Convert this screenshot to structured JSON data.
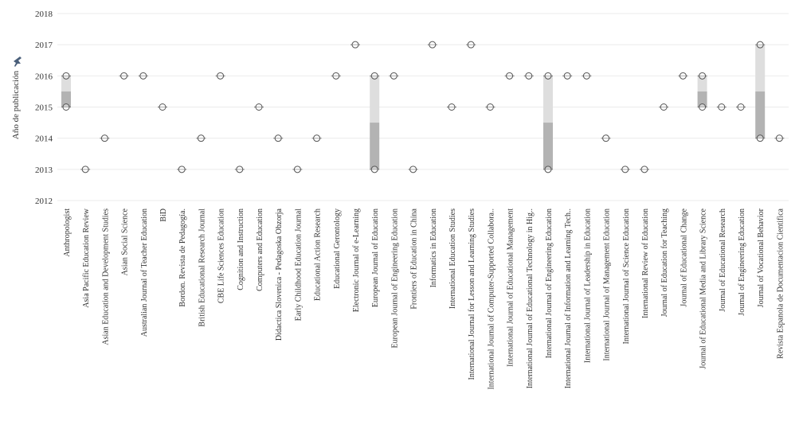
{
  "chart_data": {
    "type": "box",
    "ylabel": "Año de publicación",
    "ylabel_icon": "pin-icon",
    "ylim": [
      2012,
      2018
    ],
    "yticks": [
      2018,
      2017,
      2016,
      2015,
      2014,
      2013,
      2012
    ],
    "grid": true,
    "colors": {
      "marker_fill": "#ffffff",
      "marker_stroke": "#555555",
      "box_upper": "#dedede",
      "box_lower": "#b3b3b3",
      "grid": "#ebebeb"
    },
    "categories": [
      "Anthropologist",
      "Asia Pacific Education Review",
      "Asian Education and Development Studies",
      "Asian Social Science",
      "Australian Journal of Teacher Education",
      "BiD",
      "Bordon. Revista de Pedagogía.",
      "British Educational Research Journal",
      "CBE Life Sciences Education",
      "Cognition and Instruction",
      "Computers and Education",
      "Didactica Slovenica - Pedagoska Obzorja",
      "Early Childhood Education Journal",
      "Educational Action Research",
      "Educational Gerontology",
      "Electronic Journal of e-Learning",
      "European Journal of Education",
      "European Journal of Engineering Education",
      "Frontiers of Education in China",
      "Informatics in Education",
      "International Education Studies",
      "International Journal for Lesson and Learning Studies",
      "International Journal of Computer-Supported Collabora..",
      "International Journal of Educational Management",
      "International Journal of Educational Technology in Hig..",
      "International Journal of Engineering Education",
      "International Journal of Information and Learning Tech..",
      "International Journal of Leadership in Education",
      "International Journal of Management Education",
      "International Journal of Science Education",
      "International Review of Education",
      "Journal of Education for Teaching",
      "Journal of Educational Change",
      "Journal of Educational Media and Library Science",
      "Journal of Educational Research",
      "Journal of Engineering Education",
      "Journal of Vocational Behavior",
      "Revista Espanola de Documentacion Cientifica"
    ],
    "values": [
      [
        2015,
        2016
      ],
      [
        2013
      ],
      [
        2014
      ],
      [
        2016
      ],
      [
        2016
      ],
      [
        2015
      ],
      [
        2013
      ],
      [
        2014
      ],
      [
        2016
      ],
      [
        2013
      ],
      [
        2015
      ],
      [
        2014
      ],
      [
        2013
      ],
      [
        2014
      ],
      [
        2016
      ],
      [
        2017
      ],
      [
        2013,
        2016
      ],
      [
        2016
      ],
      [
        2013
      ],
      [
        2017
      ],
      [
        2015
      ],
      [
        2017
      ],
      [
        2015
      ],
      [
        2016
      ],
      [
        2016
      ],
      [
        2013,
        2016
      ],
      [
        2016
      ],
      [
        2016
      ],
      [
        2014
      ],
      [
        2013
      ],
      [
        2013
      ],
      [
        2015
      ],
      [
        2016
      ],
      [
        2015,
        2016
      ],
      [
        2015
      ],
      [
        2015
      ],
      [
        2014,
        2017
      ],
      [
        2014
      ]
    ]
  }
}
